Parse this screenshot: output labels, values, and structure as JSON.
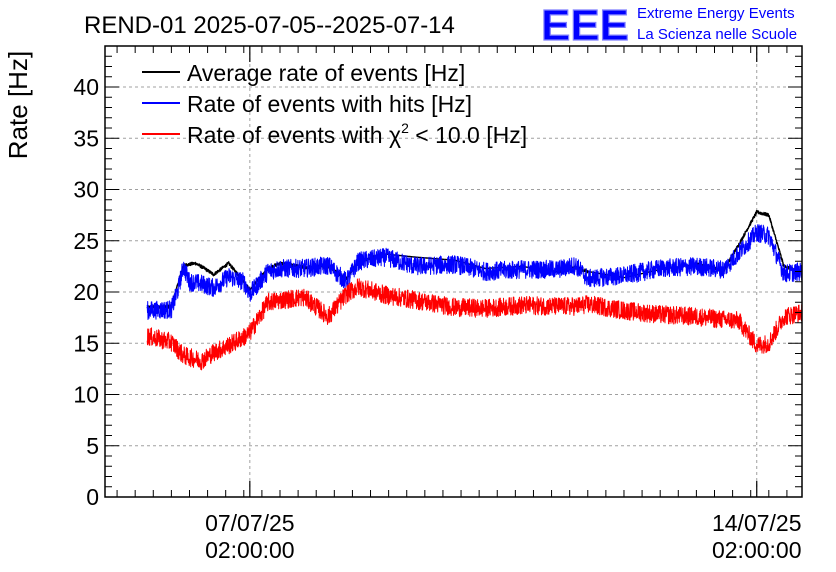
{
  "chart_data": {
    "type": "line",
    "title": "REND-01 2025-07-05--2025-07-14",
    "ylabel": "Rate [Hz]",
    "xlabel": "",
    "ylim": [
      0,
      44
    ],
    "y_ticks": [
      "0",
      "5",
      "10",
      "15",
      "20",
      "25",
      "30",
      "35",
      "40"
    ],
    "x_range": [
      "2025-07-05 02:00",
      "2025-07-14 17:00"
    ],
    "x_ticks": [
      {
        "date": "07/07/25",
        "time": "02:00:00",
        "at": "2025-07-07 02:00"
      },
      {
        "date": "14/07/25",
        "time": "02:00:00",
        "at": "2025-07-14 02:00"
      }
    ],
    "grid": true,
    "legend_position": "top-left",
    "legend_chi_prefix": "Rate of events with ",
    "legend_chi_symbol": "χ",
    "legend_chi_exponent": "2",
    "legend_chi_suffix": " < 10.0 [Hz]",
    "series": [
      {
        "name": "Average rate of events [Hz]",
        "color": "#000000",
        "noise": 0.15,
        "x": [
          "2025-07-05 16:00",
          "2025-07-06 00:00",
          "2025-07-06 04:00",
          "2025-07-06 08:00",
          "2025-07-06 11:00",
          "2025-07-06 14:00",
          "2025-07-06 19:00",
          "2025-07-07 00:00",
          "2025-07-07 02:00",
          "2025-07-07 08:00",
          "2025-07-07 12:00",
          "2025-07-07 20:00",
          "2025-07-08 04:00",
          "2025-07-08 10:00",
          "2025-07-08 14:00",
          "2025-07-08 23:00",
          "2025-07-09 09:00",
          "2025-07-09 22:00",
          "2025-07-10 08:00",
          "2025-07-10 20:00",
          "2025-07-11 08:00",
          "2025-07-11 14:00",
          "2025-07-11 18:00",
          "2025-07-12 06:00",
          "2025-07-12 18:00",
          "2025-07-13 06:00",
          "2025-07-13 15:00",
          "2025-07-13 20:00",
          "2025-07-14 02:00",
          "2025-07-14 06:00",
          "2025-07-14 11:00",
          "2025-07-14 17:00"
        ],
        "y": [
          18.5,
          18.6,
          22.6,
          22.8,
          22.3,
          21.7,
          22.8,
          21.0,
          20.2,
          22.3,
          22.8,
          22.4,
          22.5,
          21.3,
          23.0,
          23.7,
          23.4,
          23.1,
          22.3,
          22.5,
          22.0,
          22.4,
          22.0,
          21.4,
          22.2,
          22.7,
          22.1,
          24.6,
          27.8,
          27.5,
          22.5,
          22.0
        ]
      },
      {
        "name": "Rate of events with hits [Hz]",
        "color": "#0000ff",
        "noise": 0.9,
        "x": [
          "2025-07-05 16:00",
          "2025-07-06 00:00",
          "2025-07-06 02:00",
          "2025-07-06 04:00",
          "2025-07-06 06:00",
          "2025-07-06 10:00",
          "2025-07-06 14:00",
          "2025-07-06 19:00",
          "2025-07-07 00:00",
          "2025-07-07 02:00",
          "2025-07-07 08:00",
          "2025-07-07 12:00",
          "2025-07-07 20:00",
          "2025-07-08 04:00",
          "2025-07-08 10:00",
          "2025-07-08 14:00",
          "2025-07-08 23:00",
          "2025-07-09 09:00",
          "2025-07-09 22:00",
          "2025-07-10 08:00",
          "2025-07-10 20:00",
          "2025-07-11 08:00",
          "2025-07-11 14:00",
          "2025-07-11 18:00",
          "2025-07-12 06:00",
          "2025-07-12 18:00",
          "2025-07-13 06:00",
          "2025-07-13 15:00",
          "2025-07-13 20:00",
          "2025-07-14 02:00",
          "2025-07-14 06:00",
          "2025-07-14 11:00",
          "2025-07-14 17:00"
        ],
        "y": [
          18.2,
          18.3,
          20.0,
          22.5,
          21.0,
          20.8,
          20.4,
          21.5,
          21.0,
          19.8,
          22.0,
          22.3,
          22.3,
          22.6,
          21.0,
          23.0,
          23.4,
          22.5,
          22.7,
          22.0,
          22.2,
          22.2,
          22.6,
          21.3,
          21.6,
          22.3,
          22.5,
          22.2,
          23.8,
          25.8,
          25.5,
          21.8,
          22.0
        ]
      },
      {
        "name": "Rate of events with χ2 < 10.0 [Hz]",
        "color": "#ff0000",
        "noise": 0.9,
        "x": [
          "2025-07-05 16:00",
          "2025-07-06 00:00",
          "2025-07-06 04:00",
          "2025-07-06 10:00",
          "2025-07-06 14:00",
          "2025-07-06 19:00",
          "2025-07-07 00:00",
          "2025-07-07 02:00",
          "2025-07-07 08:00",
          "2025-07-07 12:00",
          "2025-07-07 20:00",
          "2025-07-08 04:00",
          "2025-07-08 10:00",
          "2025-07-08 14:00",
          "2025-07-08 23:00",
          "2025-07-09 09:00",
          "2025-07-09 22:00",
          "2025-07-10 08:00",
          "2025-07-10 20:00",
          "2025-07-11 08:00",
          "2025-07-11 14:00",
          "2025-07-11 18:00",
          "2025-07-12 06:00",
          "2025-07-12 18:00",
          "2025-07-13 06:00",
          "2025-07-13 15:00",
          "2025-07-13 20:00",
          "2025-07-14 02:00",
          "2025-07-14 06:00",
          "2025-07-14 11:00",
          "2025-07-14 17:00"
        ],
        "y": [
          15.7,
          15.1,
          13.8,
          13.3,
          14.1,
          14.8,
          15.6,
          16.0,
          19.0,
          19.2,
          19.5,
          17.6,
          19.8,
          20.5,
          19.7,
          19.2,
          18.5,
          18.4,
          18.7,
          18.6,
          18.6,
          18.8,
          18.2,
          17.8,
          17.6,
          17.3,
          17.2,
          14.8,
          15.0,
          17.6,
          18.0
        ]
      }
    ]
  },
  "branding": {
    "logo_text": "EEE",
    "line1": "Extreme Energy Events",
    "line2": "La Scienza nelle Scuole",
    "color": "#0000ff"
  }
}
